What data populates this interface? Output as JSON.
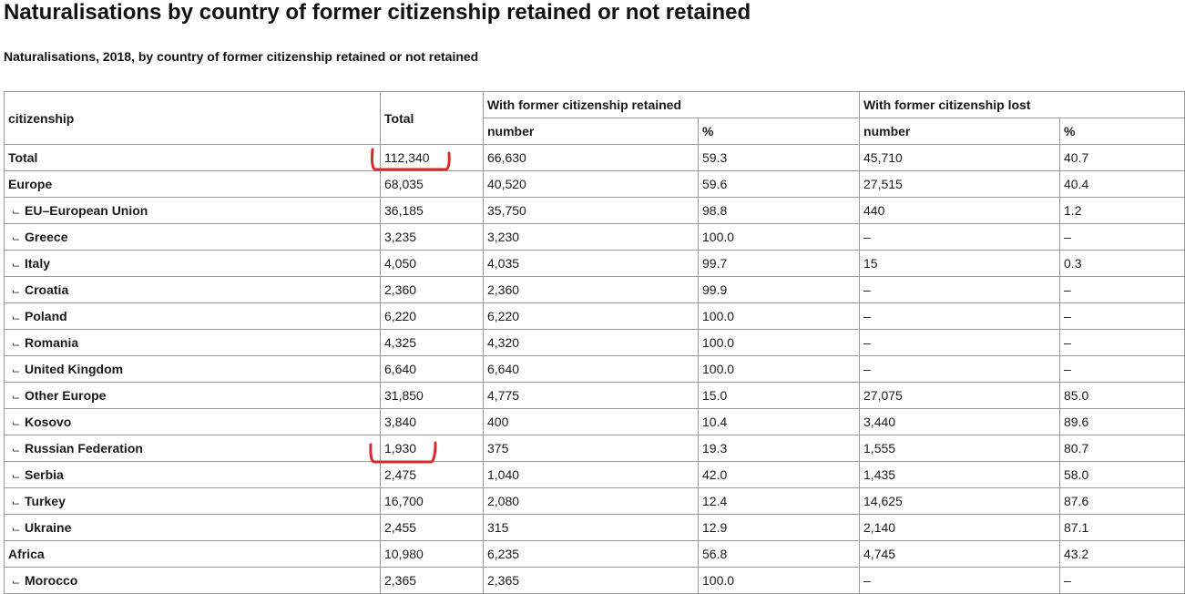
{
  "page": {
    "title": "Naturalisations by country of former citizenship retained or not retained",
    "subtitle": "Naturalisations, 2018, by country of former citizenship retained or not retained"
  },
  "table": {
    "col_citizenship": "citizenship",
    "col_total": "Total",
    "group_retained": "With former citizenship retained",
    "group_lost": "With former citizenship lost",
    "sub_number": "number",
    "sub_percent": "%",
    "indent_glyph": "⌙",
    "rows": [
      {
        "label": "Total",
        "indent": false,
        "total": "112,340",
        "ret_num": "66,630",
        "ret_pct": "59.3",
        "lost_num": "45,710",
        "lost_pct": "40.7"
      },
      {
        "label": "Europe",
        "indent": false,
        "total": "68,035",
        "ret_num": "40,520",
        "ret_pct": "59.6",
        "lost_num": "27,515",
        "lost_pct": "40.4"
      },
      {
        "label": "EU–European Union",
        "indent": true,
        "total": "36,185",
        "ret_num": "35,750",
        "ret_pct": "98.8",
        "lost_num": "440",
        "lost_pct": "1.2"
      },
      {
        "label": "Greece",
        "indent": true,
        "total": "3,235",
        "ret_num": "3,230",
        "ret_pct": "100.0",
        "lost_num": "–",
        "lost_pct": "–"
      },
      {
        "label": "Italy",
        "indent": true,
        "total": "4,050",
        "ret_num": "4,035",
        "ret_pct": "99.7",
        "lost_num": "15",
        "lost_pct": "0.3"
      },
      {
        "label": "Croatia",
        "indent": true,
        "total": "2,360",
        "ret_num": "2,360",
        "ret_pct": "99.9",
        "lost_num": "–",
        "lost_pct": "–"
      },
      {
        "label": "Poland",
        "indent": true,
        "total": "6,220",
        "ret_num": "6,220",
        "ret_pct": "100.0",
        "lost_num": "–",
        "lost_pct": "–"
      },
      {
        "label": "Romania",
        "indent": true,
        "total": "4,325",
        "ret_num": "4,320",
        "ret_pct": "100.0",
        "lost_num": "–",
        "lost_pct": "–"
      },
      {
        "label": "United Kingdom",
        "indent": true,
        "total": "6,640",
        "ret_num": "6,640",
        "ret_pct": "100.0",
        "lost_num": "–",
        "lost_pct": "–"
      },
      {
        "label": "Other Europe",
        "indent": true,
        "total": "31,850",
        "ret_num": "4,775",
        "ret_pct": "15.0",
        "lost_num": "27,075",
        "lost_pct": "85.0"
      },
      {
        "label": "Kosovo",
        "indent": true,
        "total": "3,840",
        "ret_num": "400",
        "ret_pct": "10.4",
        "lost_num": "3,440",
        "lost_pct": "89.6"
      },
      {
        "label": "Russian Federation",
        "indent": true,
        "total": "1,930",
        "ret_num": "375",
        "ret_pct": "19.3",
        "lost_num": "1,555",
        "lost_pct": "80.7"
      },
      {
        "label": "Serbia",
        "indent": true,
        "total": "2,475",
        "ret_num": "1,040",
        "ret_pct": "42.0",
        "lost_num": "1,435",
        "lost_pct": "58.0"
      },
      {
        "label": "Turkey",
        "indent": true,
        "total": "16,700",
        "ret_num": "2,080",
        "ret_pct": "12.4",
        "lost_num": "14,625",
        "lost_pct": "87.6"
      },
      {
        "label": "Ukraine",
        "indent": true,
        "total": "2,455",
        "ret_num": "315",
        "ret_pct": "12.9",
        "lost_num": "2,140",
        "lost_pct": "87.1"
      },
      {
        "label": "Africa",
        "indent": false,
        "total": "10,980",
        "ret_num": "6,235",
        "ret_pct": "56.8",
        "lost_num": "4,745",
        "lost_pct": "43.2"
      },
      {
        "label": "Morocco",
        "indent": true,
        "total": "2,365",
        "ret_num": "2,365",
        "ret_pct": "100.0",
        "lost_num": "–",
        "lost_pct": "–"
      }
    ]
  },
  "annotations": {
    "marker_color": "#d42a2a"
  }
}
